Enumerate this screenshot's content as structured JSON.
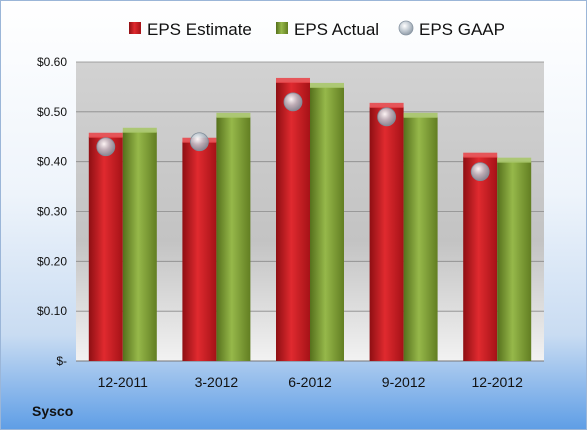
{
  "company": "Sysco",
  "colors": {
    "estimate": "#c8161d",
    "actual": "#7a9a2e",
    "gaap": "#9aa7b4"
  },
  "chart_data": {
    "type": "bar",
    "title": "",
    "xlabel": "",
    "ylabel": "",
    "categories": [
      "12-2011",
      "3-2012",
      "6-2012",
      "9-2012",
      "12-2012"
    ],
    "series": [
      {
        "name": "EPS Estimate",
        "kind": "bar",
        "values": [
          0.45,
          0.44,
          0.56,
          0.51,
          0.41
        ]
      },
      {
        "name": "EPS Actual",
        "kind": "bar",
        "values": [
          0.46,
          0.49,
          0.55,
          0.49,
          0.4
        ]
      },
      {
        "name": "EPS GAAP",
        "kind": "marker",
        "values": [
          0.43,
          0.44,
          0.52,
          0.49,
          0.38
        ]
      }
    ],
    "ylim": [
      0,
      0.6
    ],
    "yticks": [
      0,
      0.1,
      0.2,
      0.3,
      0.4,
      0.5,
      0.6
    ],
    "ytick_labels": [
      "$-",
      "$0.10",
      "$0.20",
      "$0.30",
      "$0.40",
      "$0.50",
      "$0.60"
    ],
    "grid": true,
    "legend": "top"
  }
}
